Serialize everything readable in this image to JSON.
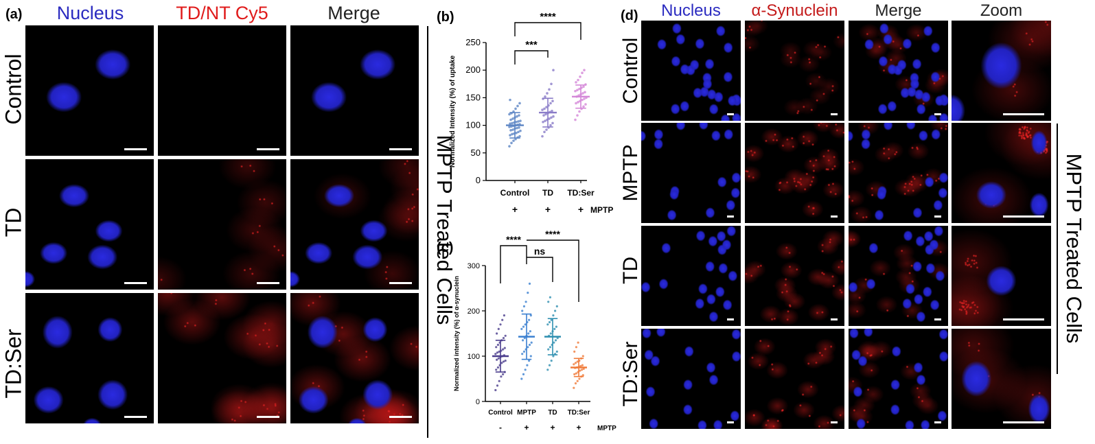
{
  "panel_a": {
    "letter": "(a)",
    "columns": [
      "Nucleus",
      "TD/NT Cy5",
      "Merge"
    ],
    "rows": [
      "Control",
      "TD",
      "TD:Ser"
    ],
    "side_label": "MPTP Treated Cells",
    "colors": {
      "nucleus": "#1f1fb4",
      "stain": "#e01b1b",
      "header_text": "#222"
    }
  },
  "panel_b": {
    "letter": "(b)",
    "chart_data": {
      "type": "scatter",
      "ylabel": "Normalized Intensity (%) of uptake",
      "ylim": [
        0,
        250
      ],
      "yticks": [
        0,
        50,
        100,
        150,
        200,
        250
      ],
      "categories": [
        "Control",
        "TD",
        "TD:Ser"
      ],
      "row_label": "MPTP",
      "row_marks": [
        "+",
        "+",
        "+"
      ],
      "series": [
        {
          "category": "Control",
          "mean": 100,
          "sd": 23,
          "color": "#5b84c4",
          "values": [
            62,
            68,
            72,
            75,
            78,
            80,
            82,
            84,
            85,
            86,
            88,
            90,
            91,
            92,
            94,
            95,
            96,
            97,
            98,
            99,
            100,
            101,
            102,
            103,
            104,
            105,
            106,
            107,
            108,
            110,
            112,
            114,
            116,
            118,
            120,
            122,
            125,
            130,
            135,
            140,
            146
          ]
        },
        {
          "category": "TD",
          "mean": 123,
          "sd": 26,
          "color": "#8a7cc8",
          "values": [
            80,
            88,
            92,
            96,
            100,
            104,
            106,
            108,
            110,
            112,
            114,
            116,
            118,
            120,
            122,
            124,
            126,
            128,
            130,
            133,
            136,
            140,
            144,
            148,
            152,
            158,
            165,
            175,
            200
          ]
        },
        {
          "category": "TD:Ser",
          "mean": 152,
          "sd": 21,
          "color": "#d487d8",
          "values": [
            110,
            118,
            125,
            130,
            134,
            138,
            140,
            142,
            144,
            146,
            148,
            150,
            152,
            154,
            156,
            158,
            160,
            162,
            164,
            166,
            168,
            170,
            174,
            178,
            182,
            188,
            195,
            200
          ]
        }
      ],
      "significance": [
        {
          "from": "Control",
          "to": "TD",
          "label": "***"
        },
        {
          "from": "Control",
          "to": "TD:Ser",
          "label": "****"
        }
      ]
    }
  },
  "panel_c": {
    "letter": "(c)",
    "chart_data": {
      "type": "scatter",
      "ylabel": "Normalized intensity (%) of α-synuclein",
      "ylim": [
        0,
        300
      ],
      "yticks": [
        0,
        100,
        200,
        300
      ],
      "categories": [
        "Control",
        "MPTP",
        "TD",
        "TD:Ser"
      ],
      "row_label": "MPTP",
      "row_marks": [
        "-",
        "+",
        "+",
        "+"
      ],
      "series": [
        {
          "category": "Control",
          "mean": 100,
          "sd": 35,
          "color": "#4a3c8c",
          "values": [
            25,
            35,
            45,
            55,
            60,
            65,
            70,
            75,
            80,
            85,
            88,
            90,
            92,
            95,
            98,
            100,
            102,
            105,
            108,
            110,
            112,
            115,
            118,
            120,
            125,
            130,
            135,
            140,
            145,
            150,
            160,
            170,
            180,
            190
          ]
        },
        {
          "category": "MPTP",
          "mean": 143,
          "sd": 50,
          "color": "#3a7fd0",
          "values": [
            50,
            60,
            70,
            80,
            90,
            100,
            105,
            110,
            115,
            120,
            125,
            130,
            135,
            140,
            145,
            150,
            155,
            160,
            165,
            170,
            175,
            180,
            190,
            200,
            210,
            220,
            240,
            260
          ]
        },
        {
          "category": "TD",
          "mean": 143,
          "sd": 40,
          "color": "#2e8fb0",
          "values": [
            70,
            80,
            90,
            100,
            105,
            110,
            115,
            120,
            125,
            130,
            135,
            140,
            145,
            150,
            155,
            160,
            165,
            170,
            175,
            180,
            190,
            200,
            210,
            220,
            230
          ]
        },
        {
          "category": "TD:Ser",
          "mean": 75,
          "sd": 20,
          "color": "#f07b3a",
          "values": [
            30,
            40,
            45,
            50,
            55,
            58,
            60,
            62,
            65,
            68,
            70,
            72,
            74,
            75,
            76,
            78,
            80,
            82,
            85,
            88,
            90,
            95,
            100,
            110,
            120,
            130
          ]
        }
      ],
      "significance": [
        {
          "from": "Control",
          "to": "MPTP",
          "label": "****"
        },
        {
          "from": "MPTP",
          "to": "TD",
          "label": "ns"
        },
        {
          "from": "MPTP",
          "to": "TD:Ser",
          "label": "****"
        }
      ]
    }
  },
  "panel_d": {
    "letter": "(d)",
    "columns": [
      "Nucleus",
      "α-Synuclein",
      "Merge",
      "Zoom"
    ],
    "rows": [
      "Control",
      "MPTP",
      "TD",
      "TD:Ser"
    ],
    "side_label": "MPTP Treated Cells",
    "colors": {
      "nucleus": "#2a2ad0",
      "stain": "#c81e1e"
    }
  }
}
